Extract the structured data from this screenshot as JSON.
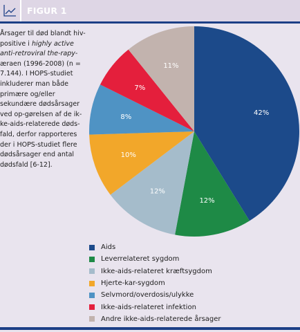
{
  "header": {
    "title": "FIGUR 1",
    "icon": "line-chart-icon"
  },
  "caption": {
    "part1": "Årsager til død blandt hiv-positive i ",
    "italic": "highly active anti-retroviral the-rapy",
    "part2": "-æraen (1996-2008) (n = 7.144). I HOPS-studiet inkluderer man både primære og/eller sekundære dødsårsager ved op-gørelsen af de ik-ke-aids-relaterede døds-fald, derfor rapporteres der i HOPS-studiet flere dødsårsager end antal dødsfald [6-12]."
  },
  "chart_data": {
    "type": "pie",
    "title": "",
    "slices": [
      {
        "label": "Aids",
        "value": 42,
        "display": "42%",
        "color": "#1c4a8a"
      },
      {
        "label": "Leverrelateret sygdom",
        "value": 12,
        "display": "12%",
        "color": "#1e8a46"
      },
      {
        "label": "Ikke-aids-relateret kræftsygdom",
        "value": 12,
        "display": "12%",
        "color": "#a5bccb"
      },
      {
        "label": "Hjerte-kar-sygdom",
        "value": 10,
        "display": "10%",
        "color": "#f2a72a"
      },
      {
        "label": "Selvmord/overdosis/ulykke",
        "value": 8,
        "display": "8%",
        "color": "#4f93c4"
      },
      {
        "label": "Ikke-aids-relateret infektion",
        "value": 7,
        "display": "7%",
        "color": "#e41f3c"
      },
      {
        "label": "Andre ikke-aids-relaterede årsager",
        "value": 11,
        "display": "11%",
        "color": "#c2b3ae"
      }
    ],
    "start_angle_deg": 0,
    "direction": "clockwise",
    "legend_position": "bottom"
  }
}
